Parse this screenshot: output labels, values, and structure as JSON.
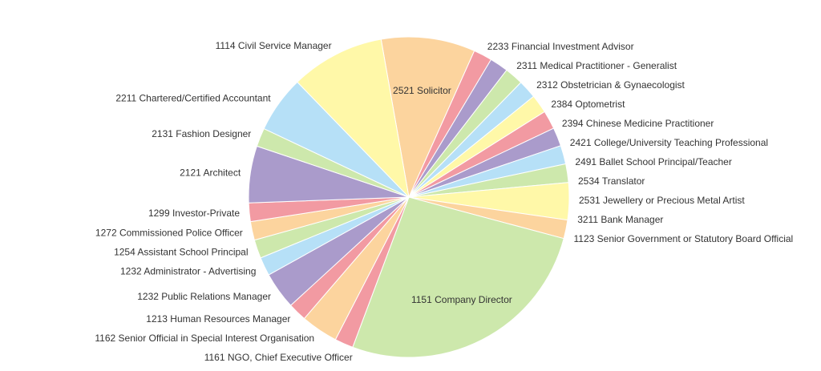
{
  "chart_data": {
    "type": "pie",
    "title": "",
    "legend": "none",
    "colors": [
      "#fff8a8",
      "#fcd49e",
      "#f29aa2",
      "#aa9bcb",
      "#cde8ac",
      "#b6e0f7"
    ],
    "slices": [
      {
        "label": "2521 Solicitor",
        "value": 8.6,
        "color": "#fcd49e"
      },
      {
        "label": "2233 Financial Investment Advisor",
        "value": 1.7,
        "color": "#f29aa2"
      },
      {
        "label": "2311 Medical Practitioner - Generalist",
        "value": 1.7,
        "color": "#aa9bcb"
      },
      {
        "label": "2312 Obstetrician & Gynaecologist",
        "value": 1.7,
        "color": "#cde8ac"
      },
      {
        "label": "2384 Optometrist",
        "value": 1.7,
        "color": "#b6e0f7"
      },
      {
        "label": "2394 Chinese Medicine Practitioner",
        "value": 1.7,
        "color": "#fff8a8"
      },
      {
        "label": "2421 College/University  Teaching Professional",
        "value": 1.7,
        "color": "#f29aa2"
      },
      {
        "label": "2491 Ballet School Principal/Teacher",
        "value": 1.7,
        "color": "#aa9bcb"
      },
      {
        "label": "2534 Translator",
        "value": 1.7,
        "color": "#b6e0f7"
      },
      {
        "label": "2531 Jewellery or Precious Metal Artist",
        "value": 1.7,
        "color": "#cde8ac"
      },
      {
        "label": "3211 Bank Manager",
        "value": 3.4,
        "color": "#fff8a8"
      },
      {
        "label": "1123 Senior Government or Statutory Board Official",
        "value": 1.7,
        "color": "#fcd49e"
      },
      {
        "label": "1151 Company Director",
        "value": 24.1,
        "color": "#cde8ac"
      },
      {
        "label": "1161 NGO, Chief Executive Officer",
        "value": 1.7,
        "color": "#f29aa2"
      },
      {
        "label": "1162 Senior Official in Special Interest Organisation",
        "value": 3.4,
        "color": "#fcd49e"
      },
      {
        "label": "1213 Human Resources Manager",
        "value": 1.7,
        "color": "#f29aa2"
      },
      {
        "label": "1232 Public Relations Manager",
        "value": 3.4,
        "color": "#aa9bcb"
      },
      {
        "label": "1232 Administrator - Advertising",
        "value": 1.7,
        "color": "#b6e0f7"
      },
      {
        "label": "1254 Assistant School Principal",
        "value": 1.7,
        "color": "#cde8ac"
      },
      {
        "label": "1272 Commissioned Police Officer",
        "value": 1.7,
        "color": "#fcd49e"
      },
      {
        "label": "1299 Investor-Private",
        "value": 1.7,
        "color": "#f29aa2"
      },
      {
        "label": "2121 Architect",
        "value": 5.2,
        "color": "#aa9bcb"
      },
      {
        "label": "2131 Fashion Designer",
        "value": 1.7,
        "color": "#cde8ac"
      },
      {
        "label": "2211 Chartered/Certified Accountant",
        "value": 5.2,
        "color": "#b6e0f7"
      },
      {
        "label": "1114 Civil Service Manager",
        "value": 8.6,
        "color": "#fff8a8"
      }
    ]
  }
}
